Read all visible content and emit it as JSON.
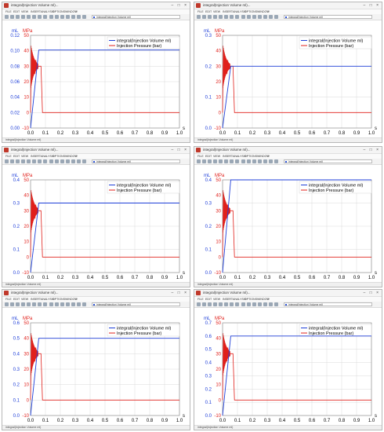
{
  "window": {
    "title": "integral(Injection Volume ml)...",
    "signal_box": "integral(Injection Volume ml)",
    "bottom_tab": "integral(Injection Volume ml)",
    "controls": "– □ ×"
  },
  "menu": [
    "FILE",
    "EDIT",
    "VIEW",
    "INSERT",
    "ANALYSIS",
    "OPTIONS",
    "WINDOW",
    "?"
  ],
  "colors": {
    "volume": "#1f3fd8",
    "pressure": "#e0201b",
    "grid": "#d9d9d9"
  },
  "charts": [
    {
      "ymax": 0.12,
      "yticks": [
        "0.00",
        "0.02",
        "0.04",
        "0.06",
        "0.08",
        "0.10",
        "0.12"
      ],
      "plateau": 0.101
    },
    {
      "ymax": 0.3,
      "yticks": [
        "0.0",
        "0.1",
        "0.2",
        "0.3"
      ],
      "plateau": 0.2
    },
    {
      "ymax": 0.4,
      "yticks": [
        "0.0",
        "0.1",
        "0.2",
        "0.3",
        "0.4"
      ],
      "plateau": 0.3
    },
    {
      "ymax": 0.4,
      "yticks": [
        "0.0",
        "0.1",
        "0.2",
        "0.3",
        "0.4"
      ],
      "plateau": 0.4
    },
    {
      "ymax": 0.6,
      "yticks": [
        "0.0",
        "0.1",
        "0.2",
        "0.3",
        "0.4",
        "0.5",
        "0.6"
      ],
      "plateau": 0.5
    },
    {
      "ymax": 0.7,
      "yticks": [
        "0.0",
        "0.1",
        "0.2",
        "0.3",
        "0.4",
        "0.5",
        "0.6",
        "0.7"
      ],
      "plateau": 0.6
    }
  ],
  "chart_data": {
    "type": "line",
    "ylabel_left": "mL",
    "ylabel_right": "MPa",
    "xlabel": "s",
    "xticks": [
      "0.0",
      "0.1",
      "0.2",
      "0.3",
      "0.4",
      "0.5",
      "0.6",
      "0.7",
      "0.8",
      "0.9",
      "1.0"
    ],
    "pressure_ticks": [
      "-10",
      "0",
      "10",
      "20",
      "30",
      "40",
      "50"
    ],
    "xlim": [
      0,
      1.0
    ],
    "pressure_lim": [
      -10,
      50
    ],
    "legend": [
      "integral(Injection Volume ml)",
      "Injection Pressure (bar)"
    ],
    "legend_position": "top-right",
    "grid": true,
    "pressure_curve": {
      "x": [
        0.0,
        0.005,
        0.01,
        0.015,
        0.02,
        0.025,
        0.03,
        0.035,
        0.04,
        0.045,
        0.05,
        0.06,
        0.07,
        0.08,
        1.0
      ],
      "y": [
        0,
        38,
        22,
        35,
        28,
        33,
        25,
        34,
        29,
        30,
        30,
        30,
        30,
        0,
        0
      ]
    }
  }
}
